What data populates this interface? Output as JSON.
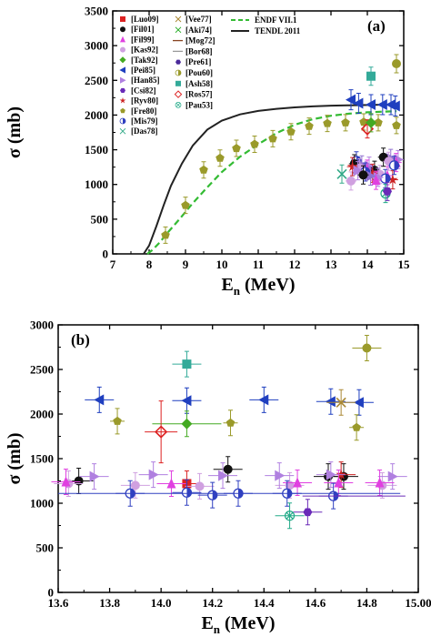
{
  "chart_data": [
    {
      "type": "scatter",
      "panel_label": "(a)",
      "xlabel": "E",
      "xlabel_sub": "n",
      "xlabel_unit": " (MeV)",
      "ylabel": "σ (mb)",
      "xlim": [
        7,
        15
      ],
      "ylim": [
        0,
        3500
      ],
      "xticks": [
        "7",
        "8",
        "9",
        "10",
        "11",
        "12",
        "13",
        "14",
        "15"
      ],
      "yticks": [
        "0",
        "500",
        "1000",
        "1500",
        "2000",
        "2500",
        "3000",
        "3500"
      ],
      "legend_col1": [
        "[Luo09]",
        "[Fil01]",
        "[Fil99]",
        "[Kas92]",
        "[Tak92]",
        "[Pei85]",
        "[Han85]",
        "[Csi82]",
        "[Ryv80]",
        "[Fre80]",
        "[Mis79]",
        "[Das78]"
      ],
      "legend_col2": [
        "[Vee77]",
        "[Aki74]",
        "[Mog72]",
        "[Bor68]",
        "[Pre61]",
        "[Pou60]",
        "[Ash58]",
        "[Ros57]",
        "[Pau53]"
      ],
      "legend_col3": [
        "ENDF VII.1",
        "TENDL 2011"
      ],
      "curves": [
        {
          "name": "ENDF VII.1",
          "color": "#33bb33",
          "style": "dashed",
          "x": [
            7.95,
            8.1,
            8.3,
            8.5,
            8.8,
            9.2,
            9.6,
            10.0,
            10.5,
            11.0,
            11.5,
            12.0,
            12.5,
            13.0,
            13.5,
            14.0,
            14.5,
            14.8
          ],
          "y": [
            0,
            60,
            170,
            300,
            480,
            730,
            960,
            1180,
            1400,
            1580,
            1740,
            1860,
            1940,
            1990,
            2020,
            2040,
            2050,
            2055
          ]
        },
        {
          "name": "TENDL 2011",
          "color": "#222222",
          "style": "solid",
          "x": [
            7.85,
            8.0,
            8.2,
            8.4,
            8.6,
            8.9,
            9.2,
            9.6,
            10.0,
            10.5,
            11.0,
            11.5,
            12.0,
            12.5,
            13.0,
            13.5,
            14.0,
            14.5,
            14.8
          ],
          "y": [
            0,
            120,
            400,
            700,
            980,
            1300,
            1560,
            1790,
            1920,
            2010,
            2060,
            2090,
            2110,
            2125,
            2135,
            2140,
            2145,
            2150,
            2150
          ]
        }
      ],
      "fre80": {
        "color": "#9a9a2a",
        "x": [
          8.45,
          9.0,
          9.5,
          9.95,
          10.4,
          10.9,
          11.4,
          11.9,
          12.4,
          12.9,
          13.4,
          13.9,
          14.3,
          14.8
        ],
        "y": [
          270,
          700,
          1210,
          1380,
          1520,
          1580,
          1660,
          1760,
          1840,
          1880,
          1890,
          1900,
          1890,
          1850
        ]
      },
      "pei85": {
        "color": "#1f3fbf",
        "x": [
          13.55,
          13.76,
          14.1,
          14.42,
          14.65,
          14.77
        ],
        "y": [
          2220,
          2170,
          2150,
          2150,
          2150,
          2130
        ]
      },
      "cluster_a": {
        "x_range": [
          13.55,
          14.9
        ],
        "y_range": [
          1050,
          1400
        ]
      },
      "outliers_a": [
        {
          "label": "Pou60",
          "x": 14.8,
          "y": 2740,
          "color": "#9a9a2a"
        },
        {
          "label": "Ash58",
          "x": 14.1,
          "y": 2560,
          "color": "#33aa99"
        },
        {
          "label": "Ros57",
          "x": 14.0,
          "y": 1800,
          "color": "#dd2222"
        },
        {
          "label": "Tak92",
          "x": 14.1,
          "y": 1890,
          "color": "#44aa22"
        },
        {
          "label": "Pau53",
          "x": 14.5,
          "y": 870,
          "color": "#22aa88"
        },
        {
          "label": "Das78",
          "x": 13.3,
          "y": 1150,
          "color": "#33aa88"
        },
        {
          "label": "Csi82",
          "x": 14.55,
          "y": 900,
          "color": "#6a2ab8"
        }
      ]
    },
    {
      "type": "scatter",
      "panel_label": "(b)",
      "xlabel": "E",
      "xlabel_sub": "n",
      "xlabel_unit": " (MeV)",
      "ylabel": "σ (mb)",
      "xlim": [
        13.6,
        15.0
      ],
      "ylim": [
        0,
        3000
      ],
      "xticks": [
        "13.6",
        "13.8",
        "14.0",
        "14.2",
        "14.4",
        "14.6",
        "14.8",
        "15.00"
      ],
      "yticks": [
        "0",
        "500",
        "1000",
        "1500",
        "2000",
        "2500",
        "3000"
      ],
      "points": [
        {
          "label": "Pou60",
          "x": 14.8,
          "y": 2740,
          "color": "#9a9a2a",
          "marker": "circle"
        },
        {
          "label": "Ash58",
          "x": 14.1,
          "y": 2560,
          "color": "#33aa99",
          "marker": "square"
        },
        {
          "label": "Pei85",
          "x": 13.76,
          "y": 2160,
          "color": "#1f3fbf",
          "marker": "tri-left"
        },
        {
          "label": "Pei85",
          "x": 14.1,
          "y": 2150,
          "color": "#1f3fbf",
          "marker": "tri-left"
        },
        {
          "label": "Pei85",
          "x": 14.4,
          "y": 2160,
          "color": "#1f3fbf",
          "marker": "tri-left"
        },
        {
          "label": "Pei85",
          "x": 14.66,
          "y": 2140,
          "color": "#1f3fbf",
          "marker": "tri-left"
        },
        {
          "label": "Pei85",
          "x": 14.77,
          "y": 2130,
          "color": "#1f3fbf",
          "marker": "tri-left"
        },
        {
          "label": "Vee77",
          "x": 14.7,
          "y": 2130,
          "color": "#aa8833",
          "marker": "x"
        },
        {
          "label": "Fre80",
          "x": 13.83,
          "y": 1920,
          "color": "#9a9a2a",
          "marker": "pentagon"
        },
        {
          "label": "Fre80",
          "x": 14.27,
          "y": 1900,
          "color": "#9a9a2a",
          "marker": "pentagon"
        },
        {
          "label": "Fre80",
          "x": 14.76,
          "y": 1850,
          "color": "#9a9a2a",
          "marker": "pentagon"
        },
        {
          "label": "Tak92",
          "x": 14.1,
          "y": 1890,
          "color": "#44aa22",
          "marker": "diamond"
        },
        {
          "label": "Ros57",
          "x": 14.0,
          "y": 1800,
          "color": "#dd2222",
          "marker": "diamond-open"
        },
        {
          "label": "Fil01",
          "x": 13.68,
          "y": 1250,
          "color": "#111111",
          "marker": "circle"
        },
        {
          "label": "Fil01",
          "x": 14.26,
          "y": 1380,
          "color": "#111111",
          "marker": "circle"
        },
        {
          "label": "Fil01",
          "x": 14.65,
          "y": 1300,
          "color": "#111111",
          "marker": "circle"
        },
        {
          "label": "Fil01",
          "x": 14.71,
          "y": 1300,
          "color": "#111111",
          "marker": "circle"
        },
        {
          "label": "Ryv80",
          "x": 14.7,
          "y": 1320,
          "color": "#cc2222",
          "marker": "star"
        },
        {
          "label": "Luo09",
          "x": 14.1,
          "y": 1220,
          "color": "#dd2222",
          "marker": "square"
        },
        {
          "label": "Kas92",
          "x": 13.64,
          "y": 1220,
          "color": "#d0a0e0",
          "marker": "circle"
        },
        {
          "label": "Kas92",
          "x": 13.9,
          "y": 1200,
          "color": "#d0a0e0",
          "marker": "circle"
        },
        {
          "label": "Kas92",
          "x": 14.15,
          "y": 1190,
          "color": "#d0a0e0",
          "marker": "circle"
        },
        {
          "label": "Kas92",
          "x": 14.5,
          "y": 1200,
          "color": "#d0a0e0",
          "marker": "circle"
        },
        {
          "label": "Kas92",
          "x": 14.86,
          "y": 1200,
          "color": "#d0a0e0",
          "marker": "circle"
        },
        {
          "label": "Han85",
          "x": 13.74,
          "y": 1300,
          "color": "#b080e0",
          "marker": "tri-right"
        },
        {
          "label": "Han85",
          "x": 13.97,
          "y": 1320,
          "color": "#b080e0",
          "marker": "tri-right"
        },
        {
          "label": "Han85",
          "x": 14.24,
          "y": 1310,
          "color": "#b080e0",
          "marker": "tri-right"
        },
        {
          "label": "Han85",
          "x": 14.46,
          "y": 1310,
          "color": "#b080e0",
          "marker": "tri-right"
        },
        {
          "label": "Han85",
          "x": 14.66,
          "y": 1320,
          "color": "#b080e0",
          "marker": "tri-right"
        },
        {
          "label": "Han85",
          "x": 14.9,
          "y": 1300,
          "color": "#b080e0",
          "marker": "tri-right"
        },
        {
          "label": "Fil99",
          "x": 13.63,
          "y": 1240,
          "color": "#e040e0",
          "marker": "tri-up"
        },
        {
          "label": "Fil99",
          "x": 14.04,
          "y": 1220,
          "color": "#e040e0",
          "marker": "tri-up"
        },
        {
          "label": "Fil99",
          "x": 14.53,
          "y": 1230,
          "color": "#e040e0",
          "marker": "tri-up"
        },
        {
          "label": "Fil99",
          "x": 14.69,
          "y": 1230,
          "color": "#e040e0",
          "marker": "tri-up"
        },
        {
          "label": "Fil99",
          "x": 14.85,
          "y": 1230,
          "color": "#e040e0",
          "marker": "tri-up"
        },
        {
          "label": "Mis79",
          "x": 13.88,
          "y": 1110,
          "color": "#3040c0",
          "marker": "half-circle"
        },
        {
          "label": "Mis79",
          "x": 14.1,
          "y": 1120,
          "color": "#3040c0",
          "marker": "half-circle"
        },
        {
          "label": "Mis79",
          "x": 14.2,
          "y": 1090,
          "color": "#3040c0",
          "marker": "half-circle"
        },
        {
          "label": "Mis79",
          "x": 14.3,
          "y": 1110,
          "color": "#3040c0",
          "marker": "half-circle"
        },
        {
          "label": "Mis79",
          "x": 14.49,
          "y": 1110,
          "color": "#3040c0",
          "marker": "half-circle"
        },
        {
          "label": "Mis79",
          "x": 14.67,
          "y": 1080,
          "color": "#3040c0",
          "marker": "half-circle"
        },
        {
          "label": "Csi82",
          "x": 14.57,
          "y": 900,
          "color": "#6a2ab8",
          "marker": "hexagon"
        },
        {
          "label": "Pau53",
          "x": 14.5,
          "y": 860,
          "color": "#22aa88",
          "marker": "xcircle"
        }
      ]
    }
  ]
}
